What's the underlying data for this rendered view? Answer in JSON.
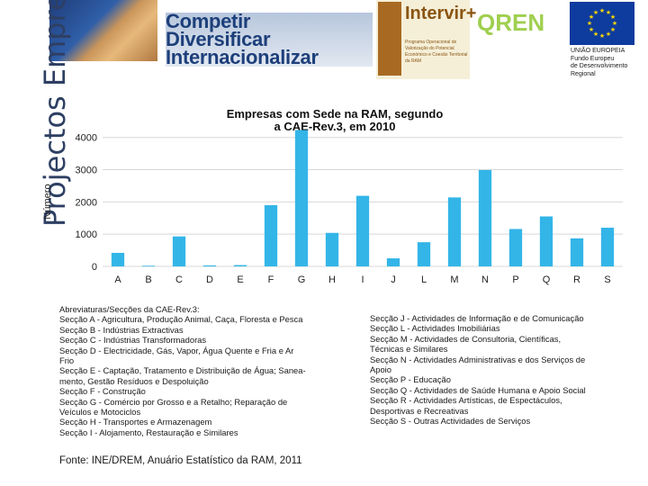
{
  "banner": {
    "slogan": [
      "Competir",
      "Diversificar",
      "Internacionalizar"
    ],
    "intervir_title": "Intervir+",
    "intervir_subtitle": "Programa Operacional de Valorização do Potencial Económico e Coesão Territorial da RAM",
    "qren_letters": "QREN",
    "eu_text": [
      "UNIÃO EUROPEIA",
      "Fundo Europeu",
      "de Desenvolvimento",
      "Regional"
    ],
    "vertical_title": "Projectos Empresariais"
  },
  "chart_data": {
    "type": "bar",
    "title": "Empresas com Sede na RAM, segundo a CAE-Rev.3, em 2010",
    "title_lines": [
      "Empresas com Sede na RAM, segundo",
      "a CAE-Rev.3, em 2010"
    ],
    "ylabel": "Número",
    "xlabel": "",
    "categories": [
      "A",
      "B",
      "C",
      "D",
      "E",
      "F",
      "G",
      "H",
      "I",
      "J",
      "L",
      "M",
      "N",
      "P",
      "Q",
      "R",
      "S"
    ],
    "values": [
      420,
      20,
      930,
      30,
      40,
      1900,
      4230,
      1040,
      2190,
      250,
      750,
      2140,
      2990,
      1160,
      1550,
      870,
      1200
    ],
    "yticks": [
      0,
      1000,
      2000,
      3000,
      4000
    ],
    "ylim": [
      0,
      4300
    ],
    "grid": true,
    "bar_color": "#33b5e8"
  },
  "notes": {
    "heading": "Abreviaturas/Secções da CAE-Rev.3:",
    "left": [
      "Secção A - Agricultura, Produção Animal, Caça, Floresta e Pesca",
      "Secção B - Indústrias Extractivas",
      "Secção C - Indústrias Transformadoras",
      "Secção D - Electricidade, Gás, Vapor, Água Quente e Fria e Ar",
      "Frio",
      "Secção E - Captação, Tratamento e Distribuição de Água; Sanea-",
      "mento, Gestão Resíduos e Despoluição",
      "Secção F - Construção",
      "Secção G - Comércio por Grosso e a Retalho; Reparação de",
      "Veículos e Motociclos",
      "Secção H - Transportes e Armazenagem",
      "Secção I - Alojamento, Restauração e Similares"
    ],
    "right": [
      "Secção J - Actividades de Informação e de Comunicação",
      "Secção L - Actividades Imobiliárias",
      "Secção M - Actividades de Consultoria, Científicas,",
      "Técnicas e Similares",
      "Secção N - Actividades Administrativas e dos Serviços de",
      "Apoio",
      "Secção P - Educação",
      "Secção Q - Actividades de Saúde Humana e Apoio Social",
      "Secção R - Actividades Artísticas, de Espectáculos,",
      "Desportivas e Recreativas",
      "Secção S - Outras Actividades de Serviços"
    ]
  },
  "source": "Fonte: INE/DREM, Anuário Estatístico da RAM, 2011"
}
